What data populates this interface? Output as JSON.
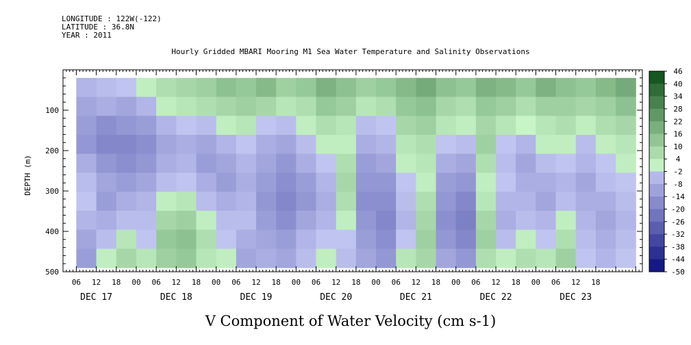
{
  "header": {
    "longitude": "LONGITUDE : 122W(-122)",
    "latitude": "LATITUDE : 36.8N",
    "year": "YEAR : 2011"
  },
  "colors": {
    "positive_dark": "#0b4d14",
    "positive_light": "#c8f5c8",
    "negative_light": "#c8ccf5",
    "negative_dark": "#0c0f7a",
    "missing": "#ffffff"
  },
  "chart_data": {
    "type": "heatmap",
    "title": "Hourly Gridded MBARI Mooring M1 Sea Water Temperature and Salinity Observations",
    "xlabel": "",
    "ylabel": "DEPTH (m)",
    "colorbar_label": "V Component of Water Velocity (cm s-1)",
    "ylim": [
      500,
      0
    ],
    "y_ticks": [
      100,
      200,
      300,
      400,
      500
    ],
    "x_hour_ticks": [
      "00",
      "06",
      "12",
      "18",
      "00",
      "06",
      "12",
      "18",
      "00",
      "06",
      "12",
      "18",
      "00",
      "06",
      "12",
      "18",
      "00",
      "06",
      "12",
      "18",
      "00",
      "06",
      "12",
      "18",
      "00",
      "06",
      "12",
      "18"
    ],
    "day_labels": [
      "DEC 17",
      "DEC 18",
      "DEC 19",
      "DEC 20",
      "DEC 21",
      "DEC 22",
      "DEC 23"
    ],
    "colorbar_ticks": [
      46,
      40,
      34,
      28,
      22,
      16,
      10,
      4,
      -2,
      -8,
      -14,
      -20,
      -26,
      -32,
      -38,
      -44,
      -50
    ],
    "colorbar_range": [
      -50,
      46
    ],
    "data_depth_range_m": [
      20,
      490
    ],
    "columns": [
      {
        "day_hour": 0,
        "profile": [
          -6,
          -10,
          -12,
          -14,
          -8,
          -4,
          -2,
          -6,
          -10,
          -12
        ]
      },
      {
        "day_hour": 6,
        "profile": [
          -4,
          -8,
          -16,
          -18,
          -14,
          -10,
          -12,
          -8,
          -4,
          2
        ]
      },
      {
        "day_hour": 12,
        "profile": [
          -2,
          -10,
          -14,
          -18,
          -16,
          -12,
          -8,
          -4,
          4,
          8
        ]
      },
      {
        "day_hour": 18,
        "profile": [
          2,
          -6,
          -12,
          -16,
          -14,
          -10,
          -6,
          -4,
          -2,
          4
        ]
      },
      {
        "day_hour": 24,
        "profile": [
          6,
          2,
          -6,
          -10,
          -8,
          -4,
          2,
          8,
          12,
          10
        ]
      },
      {
        "day_hour": 30,
        "profile": [
          8,
          4,
          -2,
          -8,
          -6,
          -2,
          4,
          10,
          14,
          12
        ]
      },
      {
        "day_hour": 36,
        "profile": [
          10,
          6,
          -4,
          -10,
          -12,
          -8,
          -4,
          2,
          6,
          4
        ]
      },
      {
        "day_hour": 42,
        "profile": [
          14,
          8,
          2,
          -6,
          -10,
          -12,
          -8,
          -4,
          -2,
          2
        ]
      },
      {
        "day_hour": 48,
        "profile": [
          12,
          10,
          4,
          -2,
          -6,
          -8,
          -6,
          -4,
          -8,
          -10
        ]
      },
      {
        "day_hour": 54,
        "profile": [
          16,
          8,
          -2,
          -8,
          -10,
          -12,
          -14,
          -12,
          -10,
          -8
        ]
      },
      {
        "day_hour": 60,
        "profile": [
          10,
          4,
          -4,
          -10,
          -14,
          -16,
          -18,
          -16,
          -12,
          -10
        ]
      },
      {
        "day_hour": 66,
        "profile": [
          12,
          6,
          2,
          -4,
          -8,
          -12,
          -14,
          -10,
          -6,
          -4
        ]
      },
      {
        "day_hour": 72,
        "profile": [
          18,
          12,
          6,
          2,
          -2,
          -6,
          -8,
          -6,
          -2,
          2
        ]
      },
      {
        "day_hour": 78,
        "profile": [
          14,
          10,
          4,
          2,
          6,
          8,
          6,
          2,
          -2,
          -4
        ]
      },
      {
        "day_hour": 84,
        "profile": [
          10,
          4,
          -4,
          -8,
          -12,
          -14,
          -16,
          -14,
          -12,
          -10
        ]
      },
      {
        "day_hour": 90,
        "profile": [
          12,
          6,
          -2,
          -6,
          -10,
          -14,
          -16,
          -18,
          -16,
          -14
        ]
      },
      {
        "day_hour": 96,
        "profile": [
          16,
          12,
          8,
          4,
          2,
          -2,
          -4,
          -6,
          -2,
          4
        ]
      },
      {
        "day_hour": 102,
        "profile": [
          20,
          14,
          10,
          6,
          4,
          2,
          6,
          8,
          10,
          8
        ]
      },
      {
        "day_hour": 108,
        "profile": [
          14,
          8,
          4,
          -2,
          -8,
          -12,
          -14,
          -16,
          -14,
          -10
        ]
      },
      {
        "day_hour": 114,
        "profile": [
          12,
          6,
          2,
          -4,
          -10,
          -14,
          -18,
          -20,
          -18,
          -14
        ]
      },
      {
        "day_hour": 120,
        "profile": [
          18,
          12,
          8,
          10,
          6,
          2,
          4,
          8,
          10,
          6
        ]
      },
      {
        "day_hour": 126,
        "profile": [
          16,
          10,
          4,
          -2,
          -4,
          -2,
          -6,
          -8,
          -4,
          2
        ]
      },
      {
        "day_hour": 132,
        "profile": [
          12,
          6,
          0,
          -6,
          -10,
          -8,
          -6,
          -4,
          2,
          6
        ]
      },
      {
        "day_hour": 138,
        "profile": [
          18,
          10,
          4,
          2,
          -4,
          -8,
          -10,
          -6,
          -2,
          4
        ]
      },
      {
        "day_hour": 144,
        "profile": [
          14,
          10,
          6,
          2,
          -2,
          -6,
          -4,
          2,
          6,
          10
        ]
      },
      {
        "day_hour": 150,
        "profile": [
          12,
          8,
          2,
          -4,
          -6,
          -10,
          -8,
          -6,
          -4,
          -2
        ]
      },
      {
        "day_hour": 156,
        "profile": [
          16,
          10,
          6,
          2,
          -2,
          -4,
          -8,
          -10,
          -8,
          -6
        ]
      },
      {
        "day_hour": 162,
        "profile": [
          20,
          14,
          8,
          4,
          2,
          -2,
          -4,
          -6,
          -4,
          -2
        ]
      }
    ],
    "columns_span_hours": 6
  }
}
